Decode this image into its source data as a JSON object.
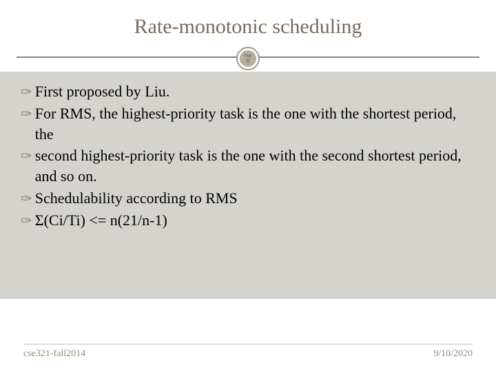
{
  "title": "Rate-monotonic scheduling",
  "badge": {
    "label": "Page",
    "number": "8"
  },
  "bullets": [
    "First proposed by Liu.",
    "For RMS, the highest-priority task is the one with the shortest period, the",
    "second highest-priority task is the one with the second shortest period, and so on.",
    "Schedulability according to RMS",
    "Σ(Ci/Ti) <= n(21/n-1)"
  ],
  "footer": {
    "left": "cse321-fall2014",
    "right": "9/10/2020"
  },
  "colors": {
    "title": "#7a6a5a",
    "content_bg": "#d5d3ce",
    "bullet_glyph": "#9a8876",
    "footer_text": "#9a8a78",
    "hr": "#8a8278",
    "badge_fill": "#b8aea0"
  }
}
